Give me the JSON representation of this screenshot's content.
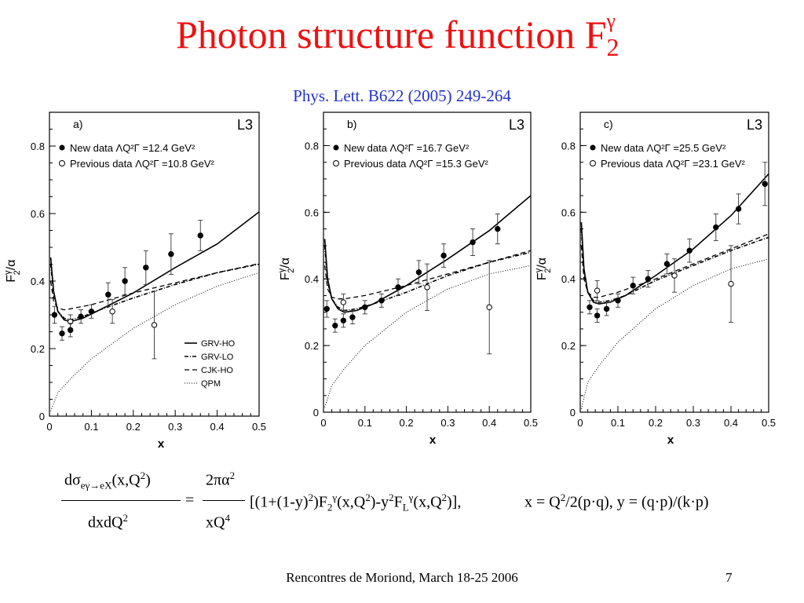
{
  "slide": {
    "title_main": "Photon structure function F",
    "title_sub": "2",
    "title_sup": "γ",
    "reference": "Phys. Lett. B622 (2005) 249-264",
    "footer": "Rencontres de Moriond, March 18-25 2006",
    "page_number": "7",
    "title_color": "#ee1111",
    "reference_color": "#2233cc"
  },
  "formula": {
    "lhs_num": "dσ",
    "lhs_num_sub": "eγ→eX",
    "lhs_num_args": "(x,Q",
    "lhs_num_args_sup": "2",
    "lhs_num_args_close": ")",
    "lhs_den": "dxdQ",
    "lhs_den_sup": "2",
    "equals": "=",
    "rhs_num": "2πα",
    "rhs_num_sup": "2",
    "rhs_den": "xQ",
    "rhs_den_sup": "4",
    "body_1": "[(1+(1-y)",
    "body_1_sup": "2",
    "body_2": ")F",
    "body_2_sub": "2",
    "body_2_sup": "γ",
    "body_3": "(x,Q",
    "body_3_sup": "2",
    "body_4": ")-y",
    "body_4_sup": "2",
    "body_5": "F",
    "body_5_sub": "L",
    "body_5_sup": "γ",
    "body_6": "(x,Q",
    "body_6_sup": "2",
    "body_7": ")],",
    "kin_1": "x = Q",
    "kin_1_sup": "2",
    "kin_2": "/2(p·q), y = (q·p)/(k·p)"
  },
  "chart_data": [
    {
      "type": "scatter",
      "panel_label": "a)",
      "experiment": "L3",
      "xlabel": "x",
      "ylabel_main": "F",
      "ylabel_sup": "γ",
      "ylabel_sub": "2",
      "ylabel_tail": "/α",
      "xlim": [
        0,
        0.5
      ],
      "ylim": [
        0,
        0.9
      ],
      "xticks": [
        0,
        0.1,
        0.2,
        0.3,
        0.4,
        0.5
      ],
      "xtick_labels": [
        "0",
        "0.1",
        "0.2",
        "0.3",
        "0.4",
        "0.5"
      ],
      "yticks": [
        0,
        0.2,
        0.4,
        0.6,
        0.8
      ],
      "ytick_labels": [
        "0",
        "0.2",
        "0.4",
        "0.6",
        "0.8"
      ],
      "legend_new": "New data  ΛQ²Γ =12.4 GeV²",
      "legend_prev": "Previous data ΛQ²Γ =10.8 GeV²",
      "curve_legend": [
        "GRV-HO",
        "GRV-LO",
        "CJK-HO",
        "QPM"
      ],
      "new_data": [
        {
          "x": 0.012,
          "y": 0.3,
          "err": 0.025
        },
        {
          "x": 0.03,
          "y": 0.245,
          "err": 0.02
        },
        {
          "x": 0.05,
          "y": 0.255,
          "err": 0.02
        },
        {
          "x": 0.075,
          "y": 0.295,
          "err": 0.02
        },
        {
          "x": 0.1,
          "y": 0.31,
          "err": 0.02
        },
        {
          "x": 0.14,
          "y": 0.36,
          "err": 0.035
        },
        {
          "x": 0.18,
          "y": 0.4,
          "err": 0.04
        },
        {
          "x": 0.23,
          "y": 0.44,
          "err": 0.05
        },
        {
          "x": 0.29,
          "y": 0.48,
          "err": 0.06
        },
        {
          "x": 0.36,
          "y": 0.535,
          "err": 0.045
        }
      ],
      "previous_data": [
        {
          "x": 0.05,
          "y": 0.28,
          "err": 0.02
        },
        {
          "x": 0.15,
          "y": 0.31,
          "err": 0.035
        },
        {
          "x": 0.25,
          "y": 0.27,
          "err": 0.1
        }
      ],
      "curves": {
        "GRV-HO": [
          [
            0.003,
            0.47
          ],
          [
            0.01,
            0.37
          ],
          [
            0.02,
            0.31
          ],
          [
            0.035,
            0.285
          ],
          [
            0.05,
            0.28
          ],
          [
            0.08,
            0.29
          ],
          [
            0.12,
            0.315
          ],
          [
            0.2,
            0.365
          ],
          [
            0.3,
            0.44
          ],
          [
            0.4,
            0.51
          ],
          [
            0.5,
            0.605
          ]
        ],
        "GRV-LO": [
          [
            0.003,
            0.45
          ],
          [
            0.01,
            0.36
          ],
          [
            0.02,
            0.31
          ],
          [
            0.035,
            0.29
          ],
          [
            0.05,
            0.285
          ],
          [
            0.08,
            0.295
          ],
          [
            0.12,
            0.315
          ],
          [
            0.2,
            0.35
          ],
          [
            0.3,
            0.39
          ],
          [
            0.4,
            0.425
          ],
          [
            0.5,
            0.45
          ]
        ],
        "CJK-HO": [
          [
            0.003,
            0.4
          ],
          [
            0.01,
            0.34
          ],
          [
            0.02,
            0.32
          ],
          [
            0.035,
            0.315
          ],
          [
            0.05,
            0.318
          ],
          [
            0.1,
            0.33
          ],
          [
            0.2,
            0.365
          ],
          [
            0.3,
            0.395
          ],
          [
            0.4,
            0.425
          ],
          [
            0.5,
            0.452
          ]
        ],
        "QPM": [
          [
            0.003,
            0.015
          ],
          [
            0.02,
            0.07
          ],
          [
            0.05,
            0.11
          ],
          [
            0.1,
            0.17
          ],
          [
            0.2,
            0.26
          ],
          [
            0.3,
            0.33
          ],
          [
            0.4,
            0.385
          ],
          [
            0.5,
            0.425
          ]
        ]
      }
    },
    {
      "type": "scatter",
      "panel_label": "b)",
      "experiment": "L3",
      "xlabel": "x",
      "ylabel_main": "F",
      "ylabel_sup": "γ",
      "ylabel_sub": "2",
      "ylabel_tail": "/α",
      "xlim": [
        0,
        0.5
      ],
      "ylim": [
        0,
        0.9
      ],
      "xticks": [
        0,
        0.1,
        0.2,
        0.3,
        0.4,
        0.5
      ],
      "xtick_labels": [
        "0",
        "0.1",
        "0.2",
        "0.3",
        "0.4",
        "0.5"
      ],
      "yticks": [
        0,
        0.2,
        0.4,
        0.6,
        0.8
      ],
      "ytick_labels": [
        "0",
        "0.2",
        "0.4",
        "0.6",
        "0.8"
      ],
      "legend_new": "New data  ΛQ²Γ =16.7 GeV²",
      "legend_prev": "Previous data ΛQ²Γ =15.3 GeV²",
      "curve_legend": [],
      "new_data": [
        {
          "x": 0.008,
          "y": 0.31,
          "err": 0.025
        },
        {
          "x": 0.028,
          "y": 0.26,
          "err": 0.02
        },
        {
          "x": 0.048,
          "y": 0.275,
          "err": 0.02
        },
        {
          "x": 0.07,
          "y": 0.285,
          "err": 0.02
        },
        {
          "x": 0.1,
          "y": 0.315,
          "err": 0.02
        },
        {
          "x": 0.14,
          "y": 0.335,
          "err": 0.02
        },
        {
          "x": 0.18,
          "y": 0.375,
          "err": 0.025
        },
        {
          "x": 0.23,
          "y": 0.42,
          "err": 0.035
        },
        {
          "x": 0.29,
          "y": 0.47,
          "err": 0.035
        },
        {
          "x": 0.36,
          "y": 0.51,
          "err": 0.04
        },
        {
          "x": 0.42,
          "y": 0.55,
          "err": 0.045
        }
      ],
      "previous_data": [
        {
          "x": 0.048,
          "y": 0.33,
          "err": 0.025
        },
        {
          "x": 0.25,
          "y": 0.375,
          "err": 0.07
        },
        {
          "x": 0.4,
          "y": 0.315,
          "err": 0.14
        }
      ],
      "curves": {
        "GRV-HO": [
          [
            0.003,
            0.52
          ],
          [
            0.01,
            0.4
          ],
          [
            0.02,
            0.34
          ],
          [
            0.035,
            0.31
          ],
          [
            0.05,
            0.3
          ],
          [
            0.08,
            0.305
          ],
          [
            0.12,
            0.325
          ],
          [
            0.2,
            0.38
          ],
          [
            0.3,
            0.46
          ],
          [
            0.4,
            0.545
          ],
          [
            0.5,
            0.65
          ]
        ],
        "GRV-LO": [
          [
            0.003,
            0.5
          ],
          [
            0.01,
            0.39
          ],
          [
            0.02,
            0.34
          ],
          [
            0.035,
            0.315
          ],
          [
            0.05,
            0.305
          ],
          [
            0.08,
            0.31
          ],
          [
            0.12,
            0.325
          ],
          [
            0.2,
            0.36
          ],
          [
            0.3,
            0.41
          ],
          [
            0.4,
            0.45
          ],
          [
            0.5,
            0.48
          ]
        ],
        "CJK-HO": [
          [
            0.003,
            0.44
          ],
          [
            0.01,
            0.37
          ],
          [
            0.02,
            0.345
          ],
          [
            0.035,
            0.34
          ],
          [
            0.05,
            0.34
          ],
          [
            0.1,
            0.35
          ],
          [
            0.2,
            0.38
          ],
          [
            0.3,
            0.415
          ],
          [
            0.4,
            0.45
          ],
          [
            0.5,
            0.485
          ]
        ],
        "QPM": [
          [
            0.003,
            0.015
          ],
          [
            0.02,
            0.08
          ],
          [
            0.05,
            0.13
          ],
          [
            0.1,
            0.2
          ],
          [
            0.2,
            0.3
          ],
          [
            0.3,
            0.37
          ],
          [
            0.4,
            0.415
          ],
          [
            0.5,
            0.44
          ]
        ]
      }
    },
    {
      "type": "scatter",
      "panel_label": "c)",
      "experiment": "L3",
      "xlabel": "x",
      "ylabel_main": "F",
      "ylabel_sup": "γ",
      "ylabel_sub": "2",
      "ylabel_tail": "/α",
      "xlim": [
        0,
        0.5
      ],
      "ylim": [
        0,
        0.9
      ],
      "xticks": [
        0,
        0.1,
        0.2,
        0.3,
        0.4,
        0.5
      ],
      "xtick_labels": [
        "0",
        "0.1",
        "0.2",
        "0.3",
        "0.4",
        "0.5"
      ],
      "yticks": [
        0,
        0.2,
        0.4,
        0.6,
        0.8
      ],
      "ytick_labels": [
        "0",
        "0.2",
        "0.4",
        "0.6",
        "0.8"
      ],
      "legend_new": "New data  ΛQ²Γ =25.5 GeV²",
      "legend_prev": "Previous data ΛQ²Γ =23.1 GeV²",
      "curve_legend": [],
      "new_data": [
        {
          "x": 0.025,
          "y": 0.315,
          "err": 0.02
        },
        {
          "x": 0.045,
          "y": 0.29,
          "err": 0.02
        },
        {
          "x": 0.07,
          "y": 0.31,
          "err": 0.02
        },
        {
          "x": 0.1,
          "y": 0.335,
          "err": 0.02
        },
        {
          "x": 0.14,
          "y": 0.38,
          "err": 0.025
        },
        {
          "x": 0.18,
          "y": 0.4,
          "err": 0.025
        },
        {
          "x": 0.23,
          "y": 0.445,
          "err": 0.03
        },
        {
          "x": 0.29,
          "y": 0.485,
          "err": 0.035
        },
        {
          "x": 0.36,
          "y": 0.555,
          "err": 0.04
        },
        {
          "x": 0.42,
          "y": 0.61,
          "err": 0.045
        },
        {
          "x": 0.49,
          "y": 0.685,
          "err": 0.065
        }
      ],
      "previous_data": [
        {
          "x": 0.045,
          "y": 0.365,
          "err": 0.03
        },
        {
          "x": 0.25,
          "y": 0.41,
          "err": 0.05
        },
        {
          "x": 0.4,
          "y": 0.385,
          "err": 0.115
        }
      ],
      "curves": {
        "GRV-HO": [
          [
            0.003,
            0.57
          ],
          [
            0.01,
            0.43
          ],
          [
            0.02,
            0.36
          ],
          [
            0.035,
            0.33
          ],
          [
            0.05,
            0.325
          ],
          [
            0.08,
            0.33
          ],
          [
            0.12,
            0.35
          ],
          [
            0.2,
            0.41
          ],
          [
            0.3,
            0.49
          ],
          [
            0.4,
            0.59
          ],
          [
            0.5,
            0.715
          ]
        ],
        "GRV-LO": [
          [
            0.003,
            0.55
          ],
          [
            0.01,
            0.42
          ],
          [
            0.02,
            0.36
          ],
          [
            0.035,
            0.335
          ],
          [
            0.05,
            0.33
          ],
          [
            0.08,
            0.335
          ],
          [
            0.12,
            0.35
          ],
          [
            0.2,
            0.395
          ],
          [
            0.3,
            0.44
          ],
          [
            0.4,
            0.485
          ],
          [
            0.5,
            0.525
          ]
        ],
        "CJK-HO": [
          [
            0.003,
            0.5
          ],
          [
            0.01,
            0.4
          ],
          [
            0.02,
            0.36
          ],
          [
            0.035,
            0.345
          ],
          [
            0.05,
            0.345
          ],
          [
            0.1,
            0.36
          ],
          [
            0.2,
            0.4
          ],
          [
            0.3,
            0.445
          ],
          [
            0.4,
            0.49
          ],
          [
            0.5,
            0.535
          ]
        ],
        "QPM": [
          [
            0.003,
            0.01
          ],
          [
            0.02,
            0.09
          ],
          [
            0.05,
            0.14
          ],
          [
            0.1,
            0.21
          ],
          [
            0.2,
            0.31
          ],
          [
            0.3,
            0.38
          ],
          [
            0.4,
            0.43
          ],
          [
            0.5,
            0.46
          ]
        ]
      }
    }
  ]
}
